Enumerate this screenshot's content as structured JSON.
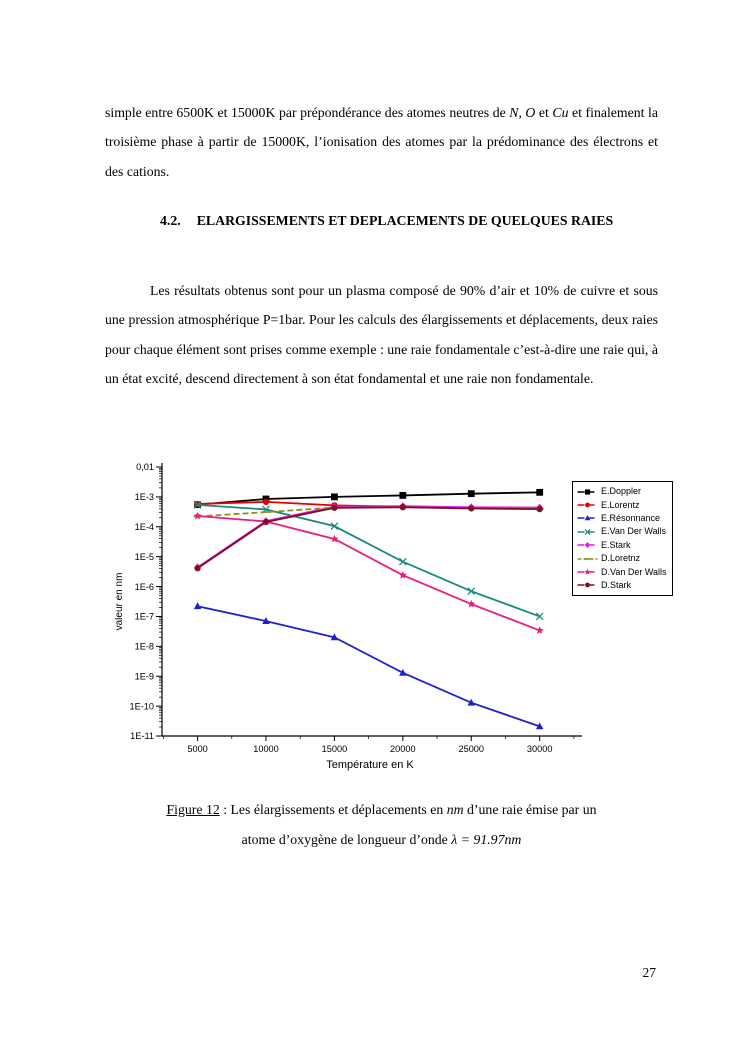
{
  "page": {
    "paragraph1": {
      "runs": [
        {
          "t": "simple entre 6500K et 15000K par prépondérance des atomes neutres de "
        },
        {
          "t": "N",
          "i": true
        },
        {
          "t": ", "
        },
        {
          "t": "O",
          "i": true
        },
        {
          "t": " et "
        },
        {
          "t": "Cu",
          "i": true
        },
        {
          "t": " et finalement la troisième phase à partir de 15000K, l’ionisation des atomes par la prédominance des électrons et des cations."
        }
      ]
    },
    "heading": {
      "number": "4.2.",
      "title": "ELARGISSEMENTS ET DEPLACEMENTS DE QUELQUES RAIES"
    },
    "paragraph2": {
      "text": "Les résultats obtenus sont pour un plasma composé de 90% d’air et 10% de cuivre et sous une pression atmosphérique P=1bar. Pour les calculs des élargissements et déplacements, deux raies pour chaque élément sont prises comme exemple : une raie fondamentale c’est-à-dire une raie qui, à un état excité, descend directement à son état fondamental et une raie non fondamentale."
    },
    "figure_caption": {
      "line1_runs": [
        {
          "t": "Figure 12",
          "u": true
        },
        {
          "t": " : Les élargissements et déplacements en "
        },
        {
          "t": "nm",
          "i": true
        },
        {
          "t": " d’une raie émise par un"
        }
      ],
      "line2_runs": [
        {
          "t": "atome d’oxygène de longueur d’onde "
        },
        {
          "t": "λ = 91.97",
          "i": true
        },
        {
          "t": "nm",
          "i": true
        }
      ]
    },
    "page_number": "27"
  },
  "chart_data": {
    "type": "line",
    "title": "",
    "xlabel": "Température en K",
    "ylabel": "valeur en  nm",
    "x_scale": "linear",
    "y_scale": "log",
    "xlim": [
      2400,
      32800
    ],
    "ylim": [
      1e-11,
      0.01
    ],
    "grid": false,
    "legend_position": "upper right",
    "x": [
      5000,
      10000,
      15000,
      20000,
      25000,
      30000
    ],
    "x_tick_labels": [
      "5000",
      "10000",
      "15000",
      "20000",
      "25000",
      "30000"
    ],
    "y_tick_labels": [
      "0,01",
      "1E-3",
      "1E-4",
      "1E-5",
      "1E-6",
      "1E-7",
      "1E-8",
      "1E-9",
      "1E-10",
      "1E-11"
    ],
    "series": [
      {
        "name": "E.Doppler",
        "color": "#000000",
        "marker": "square",
        "line": "solid",
        "values": [
          0.00055,
          0.00085,
          0.001,
          0.00112,
          0.00128,
          0.00142
        ]
      },
      {
        "name": "E.Lorentz",
        "color": "#e60000",
        "marker": "circle",
        "line": "solid",
        "values": [
          0.00058,
          0.00068,
          0.00052,
          0.00047,
          0.00043,
          0.0004
        ]
      },
      {
        "name": "E.Résonnance",
        "color": "#2020cc",
        "marker": "triangle",
        "line": "solid",
        "values": [
          2.2e-07,
          7e-08,
          2e-08,
          1.3e-09,
          1.3e-10,
          2.1e-11
        ]
      },
      {
        "name": "E.Van Der Walls",
        "color": "#1b8a7a",
        "marker": "x",
        "line": "solid",
        "values": [
          0.00054,
          0.00038,
          0.000105,
          6.8e-06,
          7e-07,
          1e-07
        ]
      },
      {
        "name": "E.Stark",
        "color": "#e619e6",
        "marker": "diamond",
        "line": "solid",
        "values": [
          4.4e-06,
          0.000155,
          0.00047,
          0.00049,
          0.00045,
          0.00044
        ]
      },
      {
        "name": "D.Loretnz",
        "color": "#8f8f19",
        "marker": "dash",
        "line": "dashed",
        "values": [
          0.00022,
          0.00031,
          0.00044,
          0.00045,
          0.00042,
          0.0004
        ]
      },
      {
        "name": "D.Van Der Walls",
        "color": "#ec1c7c",
        "marker": "star",
        "line": "solid",
        "values": [
          0.00023,
          0.00015,
          3.9e-05,
          2.4e-06,
          2.6e-07,
          3.4e-08
        ]
      },
      {
        "name": "D.Stark",
        "color": "#7d1022",
        "marker": "circle",
        "line": "solid",
        "values": [
          4.1e-06,
          0.000145,
          0.00043,
          0.00045,
          0.00041,
          0.00039
        ]
      }
    ]
  }
}
